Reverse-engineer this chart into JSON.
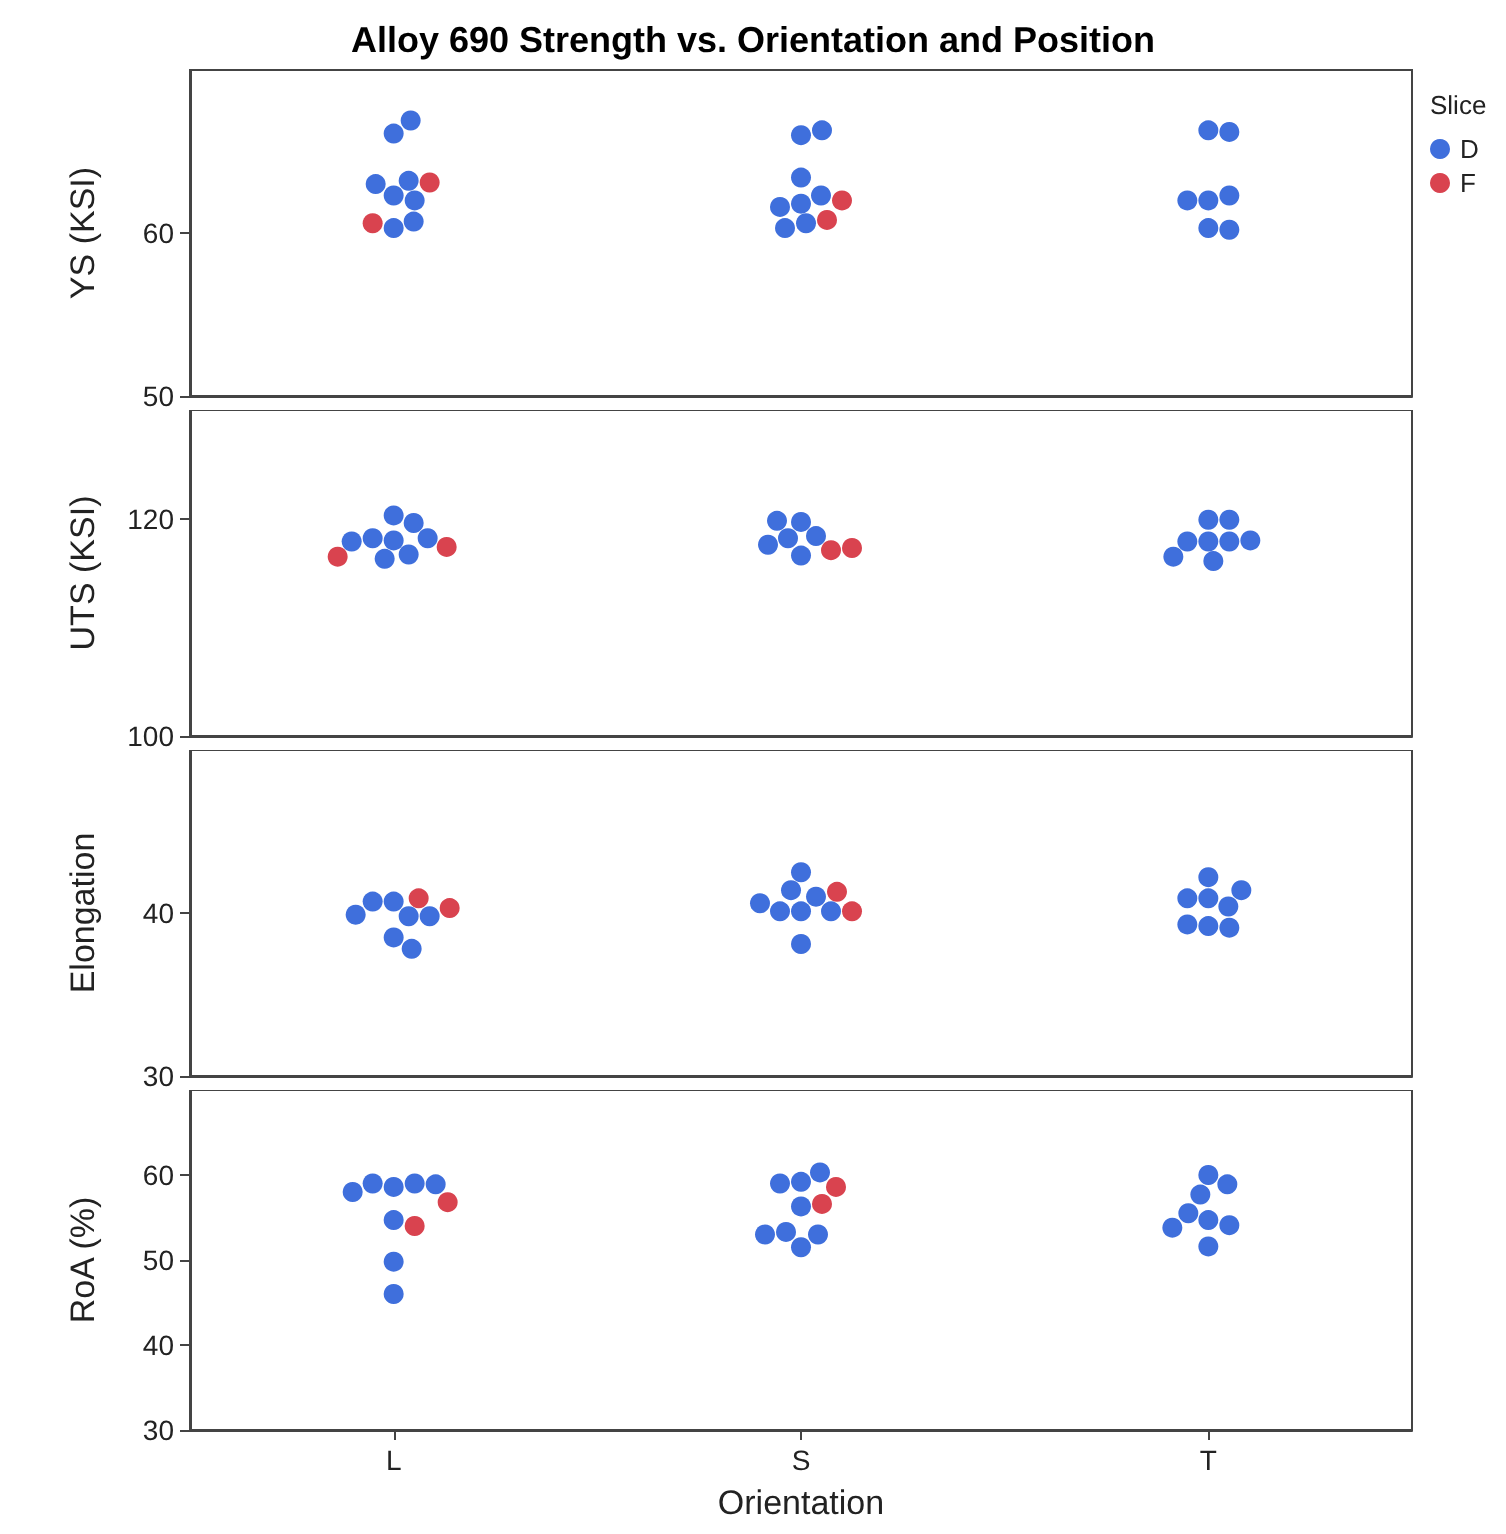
{
  "chart_data": [
    {
      "type": "scatter",
      "title": "Alloy 690 Strength vs. Orientation and Position",
      "ylabel": "YS (KSI)",
      "legend_title": "Slice",
      "legend": "top right",
      "tick_labels": "y",
      "categories": [
        "L",
        "S",
        "T"
      ],
      "ylim": [
        50,
        70
      ],
      "yticks": [
        50,
        60
      ],
      "series": [
        {
          "name": "D",
          "color": "#3f6fdc",
          "x": [
            "L",
            "L",
            "L",
            "L",
            "L",
            "L",
            "L",
            "L",
            "S",
            "S",
            "S",
            "S",
            "S",
            "S",
            "S",
            "S",
            "T",
            "T",
            "T",
            "T",
            "T",
            "T",
            "T"
          ],
          "values": [
            62.3,
            62.0,
            63.2,
            63.0,
            60.3,
            60.7,
            66.1,
            66.9,
            66.0,
            66.3,
            61.8,
            60.6,
            63.4,
            62.3,
            60.3,
            61.6,
            62.0,
            62.3,
            60.3,
            66.3,
            66.2,
            60.2,
            62.0
          ]
        },
        {
          "name": "F",
          "color": "#d9434f",
          "x": [
            "L",
            "L",
            "S",
            "S"
          ],
          "values": [
            63.1,
            60.6,
            62.0,
            60.8
          ]
        }
      ]
    },
    {
      "type": "scatter",
      "ylabel": "UTS (KSI)",
      "tick_labels": "y",
      "categories": [
        "L",
        "S",
        "T"
      ],
      "ylim": [
        100,
        130
      ],
      "yticks": [
        100,
        120
      ],
      "series": [
        {
          "color": "#3f6fdc",
          "x": [
            "L",
            "L",
            "L",
            "L",
            "L",
            "L",
            "L",
            "L",
            "S",
            "S",
            "S",
            "S",
            "S",
            "S",
            "T",
            "T",
            "T",
            "T",
            "T",
            "T",
            "T",
            "T"
          ],
          "values": [
            120.3,
            119.6,
            118.0,
            116.7,
            118.2,
            118.2,
            117.9,
            116.3,
            119.7,
            118.4,
            118.2,
            117.6,
            119.8,
            116.6,
            117.9,
            117.9,
            117.9,
            119.9,
            119.9,
            118.0,
            116.5,
            116.1
          ]
        },
        {
          "color": "#d9434f",
          "x": [
            "L",
            "L",
            "S",
            "S"
          ],
          "values": [
            117.4,
            116.5,
            117.1,
            117.3
          ]
        }
      ]
    },
    {
      "type": "scatter",
      "ylabel": "Elongation",
      "tick_labels": "y",
      "categories": [
        "L",
        "S",
        "T"
      ],
      "ylim": [
        30,
        50
      ],
      "yticks": [
        30,
        40
      ],
      "series": [
        {
          "color": "#3f6fdc",
          "x": [
            "L",
            "L",
            "L",
            "L",
            "L",
            "L",
            "L",
            "S",
            "S",
            "S",
            "S",
            "S",
            "S",
            "S",
            "S",
            "T",
            "T",
            "T",
            "T",
            "T",
            "T",
            "T",
            "T"
          ],
          "values": [
            40.7,
            39.8,
            38.5,
            37.8,
            40.7,
            39.8,
            39.9,
            40.1,
            42.5,
            41.0,
            40.1,
            41.4,
            40.1,
            40.6,
            38.1,
            39.2,
            39.1,
            40.9,
            42.2,
            40.4,
            40.9,
            41.4,
            39.3
          ]
        },
        {
          "color": "#d9434f",
          "x": [
            "L",
            "L",
            "S",
            "S"
          ],
          "values": [
            40.3,
            40.9,
            41.3,
            40.1
          ]
        }
      ]
    },
    {
      "type": "scatter",
      "ylabel": "RoA (%)",
      "xlabel": "Orientation",
      "categories": [
        "L",
        "S",
        "T"
      ],
      "ylim": [
        30,
        70
      ],
      "yticks": [
        30,
        40,
        50,
        60
      ],
      "series": [
        {
          "color": "#3f6fdc",
          "x": [
            "L",
            "L",
            "L",
            "L",
            "L",
            "L",
            "L",
            "L",
            "S",
            "S",
            "S",
            "S",
            "S",
            "S",
            "S",
            "S",
            "T",
            "T",
            "T",
            "T",
            "T",
            "T",
            "T",
            "T"
          ],
          "values": [
            49.8,
            58.6,
            59.0,
            59.0,
            58.9,
            58.0,
            54.7,
            46.0,
            59.2,
            60.3,
            59.0,
            56.3,
            51.5,
            53.0,
            53.3,
            53.0,
            54.7,
            60.0,
            58.9,
            57.7,
            54.1,
            55.5,
            53.8,
            51.6
          ]
        },
        {
          "color": "#d9434f",
          "x": [
            "L",
            "L",
            "S",
            "S"
          ],
          "values": [
            56.8,
            54.0,
            56.6,
            58.6
          ]
        }
      ]
    }
  ]
}
